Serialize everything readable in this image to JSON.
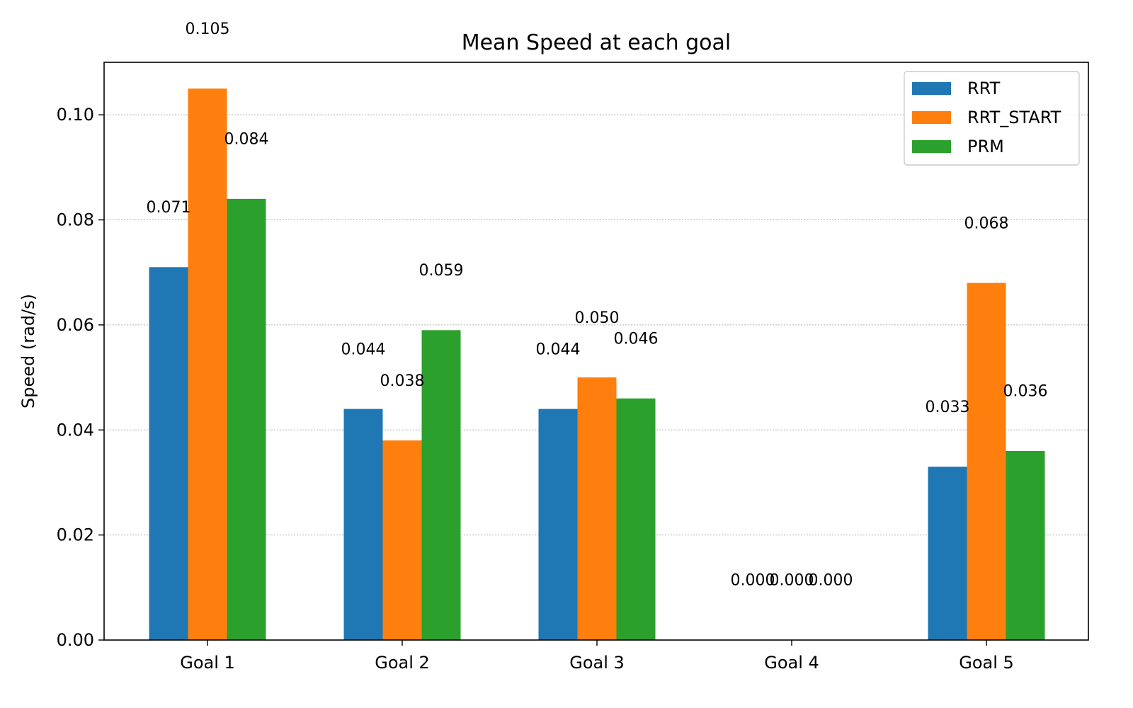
{
  "chart_data": {
    "type": "bar",
    "title": "Mean Speed at each goal",
    "xlabel": "",
    "ylabel": "Speed (rad/s)",
    "categories": [
      "Goal 1",
      "Goal 2",
      "Goal 3",
      "Goal 4",
      "Goal 5"
    ],
    "ylim": [
      0,
      0.11
    ],
    "yticks": [
      0.0,
      0.02,
      0.04,
      0.06,
      0.08,
      0.1
    ],
    "ytick_labels": [
      "0.00",
      "0.02",
      "0.04",
      "0.06",
      "0.08",
      "0.10"
    ],
    "grid": "y-dotted",
    "legend_position": "top-right",
    "series": [
      {
        "name": "RRT",
        "color": "#1f77b4",
        "values": [
          0.071,
          0.044,
          0.044,
          0.0,
          0.033
        ],
        "labels": [
          "0.071",
          "0.044",
          "0.044",
          "0.000",
          "0.033"
        ]
      },
      {
        "name": "RRT_START",
        "color": "#ff7f0e",
        "values": [
          0.105,
          0.038,
          0.05,
          0.0,
          0.068
        ],
        "labels": [
          "0.105",
          "0.038",
          "0.050",
          "0.000",
          "0.068"
        ]
      },
      {
        "name": "PRM",
        "color": "#2ca02c",
        "values": [
          0.084,
          0.059,
          0.046,
          0.0,
          0.036
        ],
        "labels": [
          "0.084",
          "0.059",
          "0.046",
          "0.000",
          "0.036"
        ]
      }
    ]
  }
}
